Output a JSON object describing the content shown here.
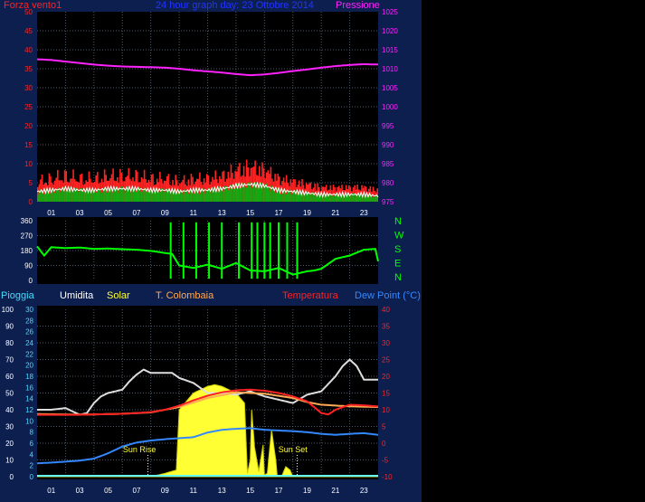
{
  "colors": {
    "background": "#000000",
    "panel": "#0b1433",
    "frame": "#0d1f4f",
    "grid": "#4d5a6e",
    "left_axis": "#ff2222",
    "pressure": "#ff22ff",
    "title": "#2233ff",
    "direction": "#00ff00",
    "rain": "#ffffff",
    "humidity": "#ffffff",
    "solar": "#ffff33",
    "colombaia": "#ffaa55",
    "temperature": "#ff2222",
    "dewpoint": "#3388ff",
    "humidity_scale": "#44ddff"
  },
  "header": {
    "left_label": "Forza vento1",
    "title": "24 hour graph day:  23 Ottobre 2014",
    "right_label": "Pressione"
  },
  "bottom_legend": {
    "rain": "Pioggia",
    "humidity": "Umidita",
    "solar": "Solar",
    "colombaia": "T. Colombaia",
    "temperature": "Temperatura",
    "dewpoint": "Dew Point (°C)"
  },
  "chart_data": [
    {
      "type": "line",
      "name": "wind_pressure",
      "x_tick_labels": [
        "01",
        "03",
        "05",
        "07",
        "09",
        "11",
        "13",
        "15",
        "17",
        "19",
        "21",
        "23"
      ],
      "x_range_hours": [
        0,
        24
      ],
      "left_ticks": [
        "50",
        "45",
        "40",
        "35",
        "30",
        "25",
        "20",
        "15",
        "10",
        "5",
        "0"
      ],
      "right_ticks": [
        "1025",
        "1020",
        "1015",
        "1010",
        "1005",
        "1000",
        "995",
        "990",
        "985",
        "980",
        "975"
      ],
      "ylim_wind": [
        0,
        50
      ],
      "ylim_pressure": [
        975,
        1025
      ],
      "grid": true,
      "series": [
        {
          "name": "Pressione",
          "color": "#ff22ff",
          "hours": [
            0,
            1,
            2,
            3,
            4,
            5,
            6,
            7,
            8,
            9,
            10,
            11,
            12,
            13,
            14,
            15,
            16,
            17,
            18,
            19,
            20,
            21,
            22,
            23,
            24
          ],
          "values": [
            1012.5,
            1012.3,
            1011.9,
            1011.5,
            1011.1,
            1010.8,
            1010.6,
            1010.5,
            1010.4,
            1010.3,
            1010.0,
            1009.6,
            1009.3,
            1009.0,
            1008.6,
            1008.3,
            1008.5,
            1008.9,
            1009.4,
            1009.8,
            1010.3,
            1010.7,
            1011.0,
            1011.2,
            1011.1
          ]
        },
        {
          "name": "Forza vento1",
          "color": "#ff2222",
          "hours": [
            0,
            1,
            2,
            3,
            4,
            5,
            6,
            7,
            8,
            9,
            10,
            11,
            12,
            13,
            14,
            15,
            16,
            17,
            18,
            19,
            20,
            21,
            22,
            23,
            24
          ],
          "values": [
            7,
            8,
            9,
            8,
            8,
            9,
            9,
            9,
            8,
            8,
            7,
            8,
            8,
            9,
            11,
            12,
            11,
            8,
            7,
            6,
            5,
            5,
            5,
            5,
            4
          ]
        }
      ]
    },
    {
      "type": "line",
      "name": "wind_direction",
      "x_range_hours": [
        0,
        24
      ],
      "left_ticks": [
        "360",
        "270",
        "180",
        "90",
        "0"
      ],
      "right_ticks": [
        "N",
        "W",
        "S",
        "E",
        "N"
      ],
      "ylim": [
        0,
        360
      ],
      "series": [
        {
          "name": "direction",
          "color": "#00ff00",
          "hours": [
            0,
            0.5,
            1,
            2,
            3,
            4,
            5,
            6,
            7,
            8,
            8.5,
            9,
            9.5,
            10,
            11,
            12,
            13,
            14,
            15,
            16,
            17,
            18,
            19,
            19.5,
            20,
            21,
            22,
            23,
            23.8,
            24
          ],
          "values": [
            205,
            150,
            200,
            195,
            198,
            190,
            192,
            188,
            185,
            178,
            172,
            165,
            160,
            90,
            75,
            95,
            70,
            105,
            60,
            55,
            75,
            35,
            55,
            60,
            70,
            130,
            150,
            185,
            190,
            115
          ]
        }
      ]
    },
    {
      "type": "line",
      "name": "temperature_humidity_solar",
      "x_tick_labels": [
        "01",
        "03",
        "05",
        "07",
        "09",
        "11",
        "13",
        "15",
        "17",
        "19",
        "21",
        "23"
      ],
      "x_range_hours": [
        0,
        24
      ],
      "rain_ticks": [
        "100",
        "90",
        "80",
        "70",
        "60",
        "50",
        "40",
        "30",
        "20",
        "10",
        "0"
      ],
      "humidity_ticks": [
        "30",
        "28",
        "26",
        "24",
        "22",
        "20",
        "18",
        "16",
        "14",
        "12",
        "10",
        "8",
        "6",
        "4",
        "2",
        "0"
      ],
      "temp_ticks": [
        "40",
        "35",
        "30",
        "25",
        "20",
        "15",
        "10",
        "5",
        "0",
        "-5",
        "-10"
      ],
      "ylim_humidity": [
        0,
        100
      ],
      "ylim_temperature": [
        -10,
        40
      ],
      "annotations": [
        "Sun Rise",
        "Sun Set"
      ],
      "series": [
        {
          "name": "Umidita",
          "color": "#dddddd",
          "hours": [
            0,
            1,
            2,
            3,
            3.5,
            4,
            4.5,
            5,
            6,
            6.5,
            7,
            7.5,
            8,
            9,
            9.5,
            10,
            11,
            12,
            13,
            14,
            15,
            16,
            17,
            18,
            19,
            20,
            21,
            21.5,
            22,
            22.5,
            23,
            24
          ],
          "values": [
            40,
            40,
            41,
            37,
            38,
            44,
            48,
            50,
            52,
            57,
            61,
            64,
            62,
            62,
            62,
            59,
            56,
            50,
            50,
            49,
            51,
            48,
            46,
            44,
            49,
            51,
            60,
            66,
            70,
            66,
            58,
            58
          ]
        },
        {
          "name": "Temperatura",
          "color": "#ff2222",
          "hours": [
            0,
            1,
            2,
            3,
            4,
            5,
            6,
            7,
            8,
            9,
            10,
            11,
            12,
            13,
            14,
            15,
            16,
            17,
            18,
            19,
            19.5,
            20,
            20.5,
            21,
            22,
            23,
            24
          ],
          "values": [
            8.5,
            8.5,
            8.5,
            8.5,
            8.6,
            8.7,
            8.8,
            9.0,
            9.3,
            10.0,
            11.2,
            12.8,
            14.2,
            15.2,
            15.8,
            16.0,
            15.7,
            15.0,
            14.0,
            12.5,
            10.8,
            9.0,
            8.6,
            10.0,
            11.5,
            11.3,
            11.0
          ]
        },
        {
          "name": "T. Colombaia",
          "color": "#ffaa55",
          "hours": [
            0,
            2,
            4,
            6,
            8,
            10,
            12,
            14,
            16,
            18,
            19,
            20,
            22,
            24
          ],
          "values": [
            8.7,
            8.6,
            8.6,
            8.8,
            9.2,
            10.8,
            13.5,
            15.2,
            14.8,
            13.5,
            12.3,
            11.5,
            11.0,
            10.8
          ]
        },
        {
          "name": "Dew Point",
          "color": "#3388ff",
          "hours": [
            0,
            1,
            2,
            3,
            4,
            5,
            6,
            7,
            8,
            9,
            10,
            11,
            12,
            13,
            14,
            15,
            16,
            17,
            18,
            19,
            20,
            21,
            22,
            23,
            24
          ],
          "values": [
            -6.0,
            -5.8,
            -5.5,
            -5.2,
            -4.6,
            -3.0,
            -1.0,
            0.2,
            0.8,
            1.2,
            1.5,
            1.8,
            3.2,
            4.0,
            4.3,
            4.5,
            4.0,
            3.8,
            3.6,
            3.3,
            2.8,
            2.5,
            2.8,
            3.0,
            2.5
          ]
        },
        {
          "name": "Solar",
          "color": "#ffff33",
          "hours": [
            0,
            7.8,
            8.5,
            9,
            9.8,
            10.0,
            10.2,
            11,
            12,
            12.5,
            13,
            14,
            14.6,
            14.8,
            15.0,
            15.1,
            15.3,
            15.6,
            15.9,
            16.0,
            16.2,
            16.5,
            16.8,
            16.9,
            17.2,
            17.5,
            17.8,
            18.0,
            18.2,
            24
          ],
          "values": [
            0,
            0,
            1,
            2,
            4,
            40,
            42,
            50,
            54,
            55,
            54,
            50,
            44,
            2,
            10,
            40,
            18,
            3,
            19,
            1,
            2,
            28,
            10,
            0,
            0,
            6,
            4,
            0,
            0,
            0
          ]
        },
        {
          "name": "Pioggia",
          "color": "#ffffff",
          "hours": [
            0,
            24
          ],
          "values": [
            0,
            0
          ]
        }
      ]
    }
  ]
}
